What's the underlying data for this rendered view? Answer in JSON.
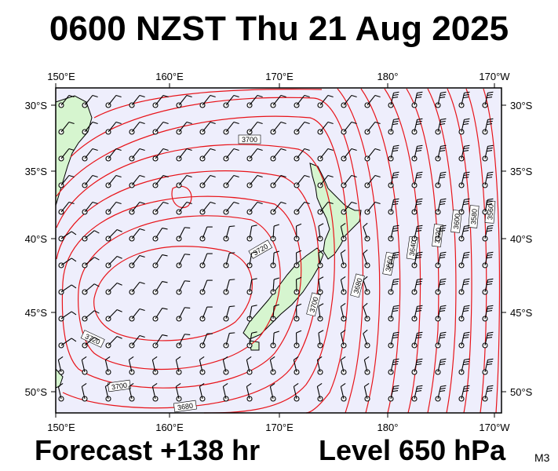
{
  "title": "0600 NZST Thu 21 Aug 2025",
  "footer": {
    "forecast": "Forecast +138 hr",
    "level": "Level 650 hPa",
    "model": "M3"
  },
  "map": {
    "lon_labels": [
      "150°E",
      "160°E",
      "170°E",
      "180°",
      "170°W"
    ],
    "lat_labels": [
      "30°S",
      "35°S",
      "40°S",
      "45°S",
      "50°S"
    ],
    "contour_labels": [
      "3700",
      "3720",
      "3720",
      "3700",
      "3680",
      "3700",
      "3680",
      "3660",
      "3640",
      "3620",
      "3600",
      "3580",
      "3560"
    ],
    "colors": {
      "sea": "#eeeefc",
      "land": "#d6f5cf",
      "contour": "#e8141a",
      "coast": "#000000",
      "barb": "#000000"
    }
  }
}
